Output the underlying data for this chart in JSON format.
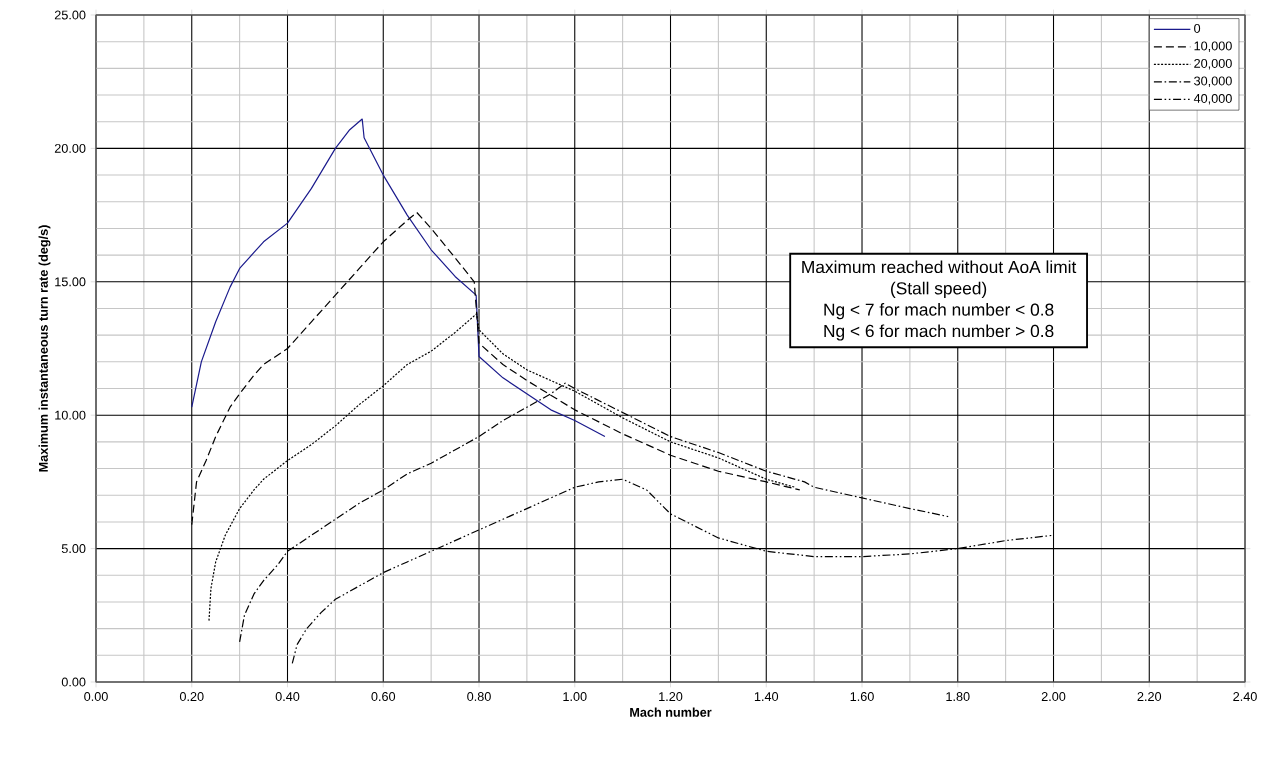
{
  "chart_data": {
    "type": "line",
    "xlabel": "Mach number",
    "ylabel": "Maximum instantaneous turn rate (deg/s)",
    "xlim": [
      0,
      2.4
    ],
    "ylim": [
      0,
      25
    ],
    "xticks": [
      {
        "value": 0,
        "label": "0.00"
      },
      {
        "value": 0.2,
        "label": "0.20"
      },
      {
        "value": 0.4,
        "label": "0.40"
      },
      {
        "value": 0.6,
        "label": "0.60"
      },
      {
        "value": 0.8,
        "label": "0.80"
      },
      {
        "value": 1.0,
        "label": "1.00"
      },
      {
        "value": 1.2,
        "label": "1.20"
      },
      {
        "value": 1.4,
        "label": "1.40"
      },
      {
        "value": 1.6,
        "label": "1.60"
      },
      {
        "value": 1.8,
        "label": "1.80"
      },
      {
        "value": 2.0,
        "label": "2.00"
      },
      {
        "value": 2.2,
        "label": "2.20"
      },
      {
        "value": 2.4,
        "label": "2.40"
      }
    ],
    "yticks": [
      {
        "value": 0,
        "label": "0.00"
      },
      {
        "value": 5,
        "label": "5.00"
      },
      {
        "value": 10,
        "label": "10.00"
      },
      {
        "value": 15,
        "label": "15.00"
      },
      {
        "value": 20,
        "label": "20.00"
      },
      {
        "value": 25,
        "label": "25.00"
      }
    ],
    "grid": true,
    "legend": "top right",
    "marker": "none",
    "annotations": [
      "Maximum reached without AoA limit",
      "(Stall speed)",
      "Ng < 7 for  mach number < 0.8",
      "Ng < 6 for  mach number > 0.8"
    ],
    "series": [
      {
        "name": "0",
        "color": "#1a1a8c",
        "line_style": "solid",
        "x": [
          0.2,
          0.22,
          0.25,
          0.28,
          0.3,
          0.35,
          0.4,
          0.45,
          0.5,
          0.53,
          0.556,
          0.56,
          0.6,
          0.65,
          0.7,
          0.75,
          0.794,
          0.8,
          0.85,
          0.9,
          0.95,
          1.0,
          1.063
        ],
        "values": [
          10.3,
          12.0,
          13.5,
          14.8,
          15.5,
          16.5,
          17.2,
          18.5,
          20.0,
          20.7,
          21.1,
          20.4,
          19.0,
          17.5,
          16.2,
          15.2,
          14.5,
          12.2,
          11.4,
          10.8,
          10.2,
          9.8,
          9.2
        ]
      },
      {
        "name": "10,000",
        "color": "#000000",
        "line_style": "dashed",
        "x": [
          0.2,
          0.21,
          0.23,
          0.25,
          0.28,
          0.3,
          0.33,
          0.35,
          0.4,
          0.45,
          0.5,
          0.55,
          0.6,
          0.65,
          0.67,
          0.7,
          0.75,
          0.79,
          0.8,
          0.85,
          0.9,
          1.0,
          1.1,
          1.2,
          1.25,
          1.3,
          1.4,
          1.47
        ],
        "values": [
          5.9,
          7.5,
          8.3,
          9.2,
          10.3,
          10.8,
          11.5,
          11.9,
          12.5,
          13.5,
          14.5,
          15.5,
          16.5,
          17.3,
          17.6,
          17.0,
          15.9,
          15.0,
          12.7,
          11.9,
          11.3,
          10.2,
          9.3,
          8.5,
          8.2,
          7.9,
          7.5,
          7.2
        ]
      },
      {
        "name": "20,000",
        "color": "#000000",
        "line_style": "dotted",
        "x": [
          0.236,
          0.24,
          0.25,
          0.27,
          0.3,
          0.33,
          0.35,
          0.4,
          0.45,
          0.5,
          0.55,
          0.6,
          0.65,
          0.7,
          0.75,
          0.795,
          0.8,
          0.85,
          0.9,
          1.0,
          1.1,
          1.2,
          1.3,
          1.4,
          1.46
        ],
        "values": [
          2.3,
          3.5,
          4.5,
          5.5,
          6.5,
          7.2,
          7.6,
          8.3,
          8.9,
          9.6,
          10.4,
          11.1,
          11.9,
          12.4,
          13.1,
          13.8,
          13.2,
          12.3,
          11.7,
          10.9,
          9.9,
          9.0,
          8.4,
          7.6,
          7.3
        ]
      },
      {
        "name": "30,000",
        "color": "#000000",
        "line_style": "dashdot",
        "x": [
          0.3,
          0.31,
          0.33,
          0.35,
          0.38,
          0.4,
          0.45,
          0.5,
          0.55,
          0.6,
          0.65,
          0.7,
          0.75,
          0.8,
          0.85,
          0.9,
          0.95,
          0.98,
          1.0,
          1.1,
          1.2,
          1.3,
          1.4,
          1.48,
          1.5,
          1.6,
          1.7,
          1.78
        ],
        "values": [
          1.5,
          2.5,
          3.3,
          3.8,
          4.4,
          4.9,
          5.5,
          6.1,
          6.7,
          7.2,
          7.8,
          8.2,
          8.7,
          9.2,
          9.8,
          10.3,
          10.8,
          11.2,
          11.0,
          10.1,
          9.2,
          8.6,
          7.9,
          7.5,
          7.3,
          6.9,
          6.5,
          6.2
        ]
      },
      {
        "name": "40,000",
        "color": "#000000",
        "line_style": "dashdotdot",
        "x": [
          0.41,
          0.42,
          0.44,
          0.47,
          0.5,
          0.55,
          0.6,
          0.65,
          0.7,
          0.75,
          0.8,
          0.85,
          0.9,
          0.95,
          1.0,
          1.05,
          1.1,
          1.15,
          1.2,
          1.3,
          1.4,
          1.5,
          1.6,
          1.7,
          1.8,
          1.9,
          2.0
        ],
        "values": [
          0.7,
          1.4,
          2.0,
          2.6,
          3.1,
          3.6,
          4.1,
          4.5,
          4.9,
          5.3,
          5.7,
          6.1,
          6.5,
          6.9,
          7.3,
          7.5,
          7.6,
          7.2,
          6.3,
          5.4,
          4.9,
          4.7,
          4.7,
          4.8,
          5.0,
          5.3,
          5.5
        ]
      }
    ]
  }
}
